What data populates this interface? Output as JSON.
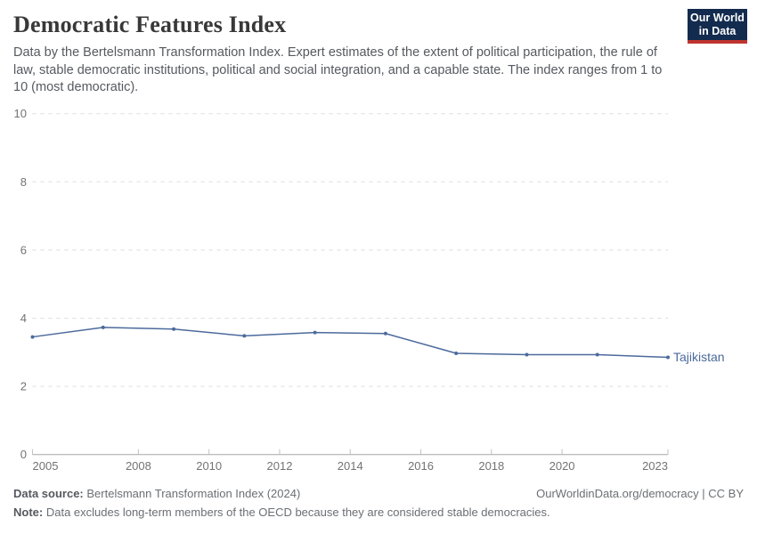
{
  "header": {
    "title": "Democratic Features Index",
    "subtitle": "Data by the Bertelsmann Transformation Index. Expert estimates of the extent of political participation, the rule of law, stable democratic institutions, political and social integration, and a capable state. The index ranges from 1 to 10 (most democratic).",
    "logo": {
      "line1": "Our World",
      "line2": "in Data",
      "bg": "#122b4e",
      "accent": "#c0332e"
    }
  },
  "chart_data": {
    "type": "line",
    "title": "Democratic Features Index",
    "xlabel": "",
    "ylabel": "",
    "xlim": [
      2005,
      2023
    ],
    "ylim": [
      0,
      10
    ],
    "yticks": [
      0,
      2,
      4,
      6,
      8,
      10
    ],
    "xticks": [
      2005,
      2008,
      2010,
      2012,
      2014,
      2016,
      2018,
      2020,
      2023
    ],
    "grid": "horizontal-dashed",
    "legend_position": "line-end-label",
    "series": [
      {
        "name": "Tajikistan",
        "color": "#4C6A9C",
        "x": [
          2005,
          2007,
          2009,
          2011,
          2013,
          2015,
          2017,
          2019,
          2021,
          2023
        ],
        "values": [
          3.45,
          3.73,
          3.68,
          3.48,
          3.58,
          3.55,
          2.97,
          2.93,
          2.93,
          2.85
        ]
      }
    ],
    "colors": {
      "grid": "#dedede",
      "axis": "#a5a5a5",
      "tick": "#c2c2c2",
      "tick_label": "#737373"
    }
  },
  "footer": {
    "source_label": "Data source:",
    "source_text": "Bertelsmann Transformation Index (2024)",
    "license_text": "OurWorldinData.org/democracy | CC BY",
    "note_label": "Note:",
    "note_text": "Data excludes long-term members of the OECD because they are considered stable democracies."
  }
}
